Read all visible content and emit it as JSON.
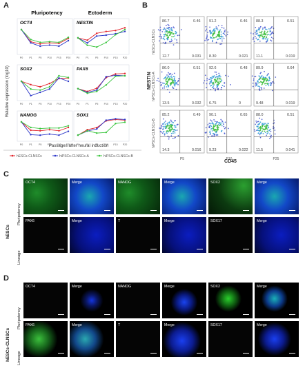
{
  "panel_labels": {
    "a": "A",
    "b": "B",
    "c": "C",
    "d": "D"
  },
  "panel_a": {
    "col_titles": [
      "Pluripotency",
      "Ectoderm"
    ],
    "ylabel": "Relative expression (log10)",
    "xlabel": "Passages after neural induction",
    "legend": [
      "hESCs-CLNSCs",
      "hiPSCs-CLNSCs-A",
      "hiPSCs-CLNSCs-B"
    ],
    "colors": [
      "#e2232a",
      "#2a35c8",
      "#37c43a"
    ],
    "x_ticks": [
      "P0",
      "P1",
      "P5",
      "P10",
      "P15",
      "P20"
    ]
  },
  "panel_b": {
    "row_labels": [
      "hESCs-CLNSCs",
      "hiPSCs-CLNSCs-A",
      "hiPSCs-CLNSCs-B"
    ],
    "col_labels": [
      "P5",
      "P10",
      "P25"
    ],
    "ylabel": "NESTIN",
    "xlabel": "CD45",
    "quadrants": [
      [
        [
          "86.7",
          "0.46",
          "12.7",
          "0.031"
        ],
        [
          "91.2",
          "0.46",
          "8.30",
          "0.021"
        ],
        [
          "88.3",
          "0.51",
          "11.1",
          "0.019"
        ]
      ],
      [
        [
          "86.0",
          "0.51",
          "13.5",
          "0.032"
        ],
        [
          "92.6",
          "0.48",
          "6.75",
          "0"
        ],
        [
          "89.9",
          "0.64",
          "9.48",
          "0.019"
        ]
      ],
      [
        [
          "85.2",
          "0.49",
          "14.3",
          "0.016"
        ],
        [
          "90.1",
          "0.65",
          "9.23",
          "0.022"
        ],
        [
          "88.0",
          "0.51",
          "11.5",
          "0.041"
        ]
      ]
    ]
  },
  "panel_c": {
    "side_label": "hESCs",
    "rows": [
      "Pluripotency",
      "Lineage"
    ],
    "labels": [
      [
        "OCT4",
        "Merge",
        "NANOG",
        "Merge",
        "SOX2",
        "Merge"
      ],
      [
        "PAX6",
        "Merge",
        "T",
        "Merge",
        "SOX17",
        "Merge"
      ]
    ]
  },
  "panel_d": {
    "side_label": "hESCs-CLNSCs",
    "rows": [
      "Pluripotency",
      "Lineage"
    ],
    "labels": [
      [
        "OCT4",
        "Merge",
        "NANOG",
        "Merge",
        "SOX2",
        "Merge"
      ],
      [
        "PAX6",
        "Merge",
        "T",
        "Merge",
        "SOX17",
        "Merge"
      ]
    ]
  },
  "chart_data": [
    {
      "type": "line",
      "title": "OCT4",
      "x": [
        "P0",
        "P1",
        "P5",
        "P10",
        "P15",
        "P20"
      ],
      "ylabel": "Relative expression (log10)",
      "series": [
        {
          "name": "hESCs-CLNSCs",
          "values": [
            0.0,
            -2.2,
            -2.6,
            -2.4,
            -2.5,
            -1.6
          ]
        },
        {
          "name": "hiPSCs-CLNSCs-A",
          "values": [
            0.0,
            -2.4,
            -3.0,
            -2.8,
            -3.0,
            -2.0
          ]
        },
        {
          "name": "hiPSCs-CLNSCs-B",
          "values": [
            0.0,
            -1.8,
            -2.3,
            -2.2,
            -2.3,
            -1.4
          ]
        }
      ]
    },
    {
      "type": "line",
      "title": "NESTIN",
      "x": [
        "P0",
        "P1",
        "P5",
        "P10",
        "P15",
        "P20"
      ],
      "series": [
        {
          "name": "hESCs-CLNSCs",
          "values": [
            0.0,
            -0.5,
            1.0,
            1.4,
            1.6,
            2.2
          ]
        },
        {
          "name": "hiPSCs-CLNSCs-A",
          "values": [
            0.0,
            -1.1,
            0.4,
            0.6,
            0.9,
            1.4
          ]
        },
        {
          "name": "hiPSCs-CLNSCs-B",
          "values": [
            0.0,
            -1.6,
            -2.0,
            -1.0,
            0.7,
            1.8
          ]
        }
      ]
    },
    {
      "type": "line",
      "title": "SOX2",
      "x": [
        "P0",
        "P1",
        "P5",
        "P10",
        "P15",
        "P20"
      ],
      "series": [
        {
          "name": "hESCs-CLNSCs",
          "values": [
            0.0,
            -0.6,
            -1.0,
            -0.4,
            0.5,
            0.6
          ]
        },
        {
          "name": "hiPSCs-CLNSCs-A",
          "values": [
            0.0,
            -2.6,
            -2.0,
            -1.4,
            0.6,
            0.0
          ]
        },
        {
          "name": "hiPSCs-CLNSCs-B",
          "values": [
            0.0,
            -1.4,
            -1.6,
            -1.0,
            1.0,
            0.7
          ]
        }
      ]
    },
    {
      "type": "line",
      "title": "PAX6",
      "x": [
        "P0",
        "P1",
        "P5",
        "P10",
        "P15",
        "P20"
      ],
      "series": [
        {
          "name": "hESCs-CLNSCs",
          "values": [
            0.0,
            -0.6,
            0.1,
            2.4,
            3.2,
            3.3
          ]
        },
        {
          "name": "hiPSCs-CLNSCs-A",
          "values": [
            0.0,
            -0.8,
            -0.3,
            2.6,
            2.9,
            2.8
          ]
        },
        {
          "name": "hiPSCs-CLNSCs-B",
          "values": [
            0.0,
            -1.0,
            -0.6,
            0.8,
            2.7,
            2.8
          ]
        }
      ]
    },
    {
      "type": "line",
      "title": "NANOG",
      "x": [
        "P0",
        "P1",
        "P5",
        "P10",
        "P15",
        "P20"
      ],
      "series": [
        {
          "name": "hESCs-CLNSCs",
          "values": [
            0.0,
            -1.5,
            -1.6,
            -1.4,
            -1.6,
            -1.0
          ]
        },
        {
          "name": "hiPSCs-CLNSCs-A",
          "values": [
            0.0,
            -2.3,
            -2.4,
            -2.2,
            -2.4,
            -1.7
          ]
        },
        {
          "name": "hiPSCs-CLNSCs-B",
          "values": [
            0.0,
            -1.0,
            -1.2,
            -1.1,
            -1.1,
            -0.7
          ]
        }
      ]
    },
    {
      "type": "line",
      "title": "SOX1",
      "x": [
        "P0",
        "P1",
        "P5",
        "P10",
        "P15",
        "P20"
      ],
      "series": [
        {
          "name": "hESCs-CLNSCs",
          "values": [
            0.0,
            1.6,
            2.2,
            4.2,
            4.6,
            4.4
          ]
        },
        {
          "name": "hiPSCs-CLNSCs-A",
          "values": [
            0.0,
            1.2,
            1.8,
            4.4,
            4.8,
            4.6
          ]
        },
        {
          "name": "hiPSCs-CLNSCs-B",
          "values": [
            0.0,
            1.3,
            0.6,
            0.8,
            3.4,
            3.8
          ]
        }
      ]
    }
  ]
}
